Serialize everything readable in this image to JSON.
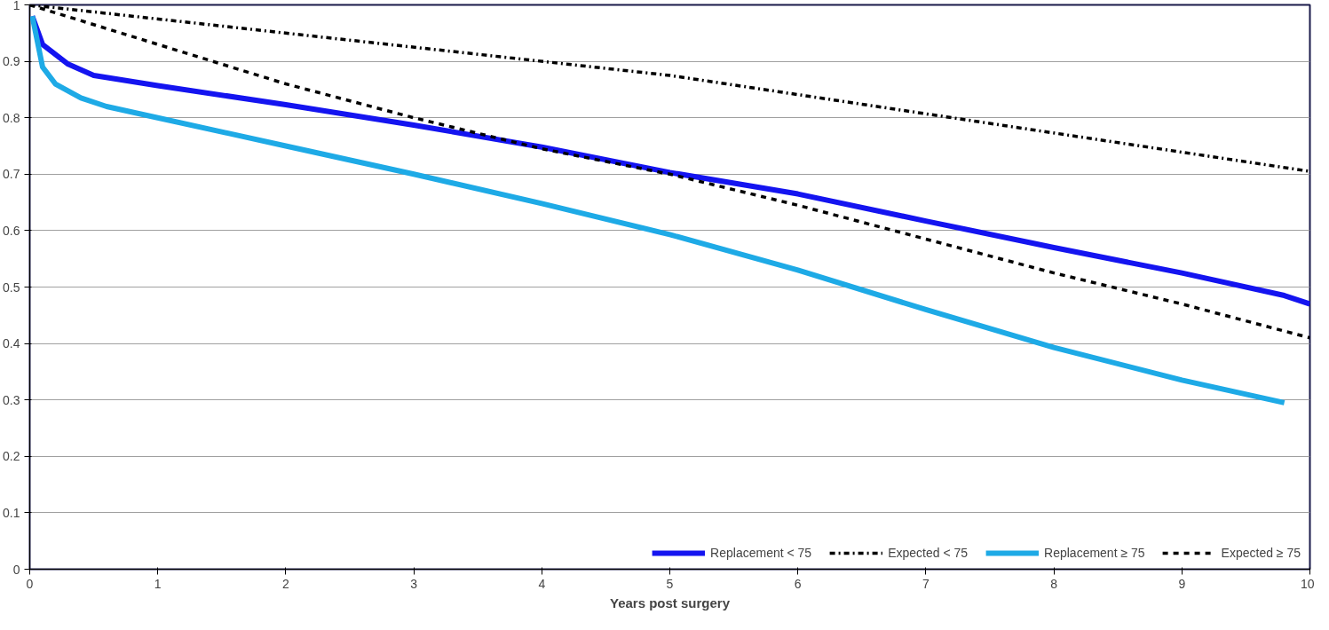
{
  "chart_data": {
    "type": "line",
    "xlabel": "Years post surgery",
    "xlim": [
      0,
      10
    ],
    "xticks": [
      0,
      1,
      2,
      3,
      4,
      5,
      6,
      7,
      8,
      9,
      10
    ],
    "ylim": [
      0,
      1
    ],
    "yticks": [
      0,
      0.1,
      0.2,
      0.3,
      0.4,
      0.5,
      0.6,
      0.7,
      0.8,
      0.9,
      1
    ],
    "grid": "y",
    "legend": "bottom right",
    "marker": "none",
    "series": [
      {
        "name": "Replacement < 75",
        "color": "#1414f0",
        "line_style": "solid",
        "x": [
          0.02,
          0.1,
          0.3,
          0.5,
          1,
          2,
          3,
          4,
          5,
          6,
          7,
          8,
          9,
          9.8,
          10
        ],
        "values": [
          0.98,
          0.93,
          0.895,
          0.875,
          0.857,
          0.823,
          0.787,
          0.748,
          0.703,
          0.665,
          0.617,
          0.57,
          0.525,
          0.485,
          0.47
        ]
      },
      {
        "name": "Expected < 75",
        "color": "#000000",
        "line_style": "dashdot",
        "x": [
          0,
          5,
          10
        ],
        "values": [
          1,
          0.875,
          0.705
        ]
      },
      {
        "name": "Replacement ≥ 75",
        "color": "#1eaae6",
        "line_style": "solid",
        "x": [
          0.02,
          0.1,
          0.2,
          0.4,
          0.6,
          1,
          2,
          3,
          4,
          5,
          6,
          7,
          8,
          9,
          9.8
        ],
        "values": [
          0.98,
          0.89,
          0.86,
          0.835,
          0.82,
          0.8,
          0.75,
          0.7,
          0.648,
          0.593,
          0.53,
          0.46,
          0.393,
          0.335,
          0.295
        ]
      },
      {
        "name": "Expected ≥ 75",
        "color": "#000000",
        "line_style": "dashed",
        "x": [
          0,
          1,
          2,
          3,
          4,
          5,
          6,
          7,
          8,
          9,
          10
        ],
        "values": [
          1,
          0.93,
          0.86,
          0.8,
          0.745,
          0.7,
          0.645,
          0.585,
          0.525,
          0.47,
          0.41
        ]
      }
    ]
  }
}
